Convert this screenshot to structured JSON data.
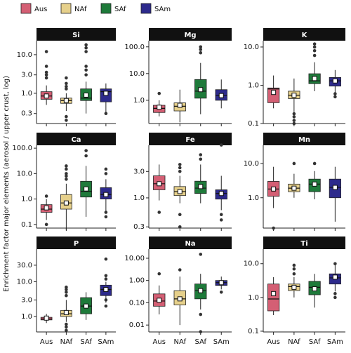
{
  "chart_data": {
    "type": "box",
    "y_label": "Enrichment factor major elements (aerosol / upper crust, log)",
    "log_scale": true,
    "series": [
      {
        "name": "Aus",
        "color": "#d45f74"
      },
      {
        "name": "NAf",
        "color": "#e6d08b"
      },
      {
        "name": "SAf",
        "color": "#1e7a3a"
      },
      {
        "name": "SAm",
        "color": "#2d2a8c"
      }
    ],
    "panels": [
      {
        "title": "Si",
        "ylim": [
          0.165,
          23
        ],
        "yticks": [
          0.3,
          {
            "value": 1,
            "label": "1.0"
          },
          {
            "value": 3,
            "label": "3.0"
          },
          {
            "value": 10,
            "label": "10.0"
          }
        ],
        "boxes": [
          {
            "q1": 0.7,
            "median": 0.85,
            "q3": 1.1,
            "whisker_low": 0.5,
            "whisker_high": 1.6,
            "mean": 0.85,
            "outliers": [
              2.5,
              3,
              3.5,
              5,
              12
            ]
          },
          {
            "q1": 0.55,
            "median": 0.65,
            "q3": 0.75,
            "whisker_low": 0.35,
            "whisker_high": 1.0,
            "mean": 0.65,
            "outliers": [
              0.2,
              0.25,
              1.3,
              1.5,
              1.8,
              2.5
            ]
          },
          {
            "q1": 0.65,
            "median": 0.75,
            "q3": 1.3,
            "whisker_low": 0.3,
            "whisker_high": 2,
            "mean": 0.9,
            "outliers": [
              3,
              4,
              5,
              12,
              15,
              18
            ]
          },
          {
            "q1": 0.6,
            "median": 1.1,
            "q3": 1.3,
            "whisker_low": 0.3,
            "whisker_high": 1.8,
            "mean": 1.0,
            "outliers": [
              0.3
            ]
          }
        ]
      },
      {
        "title": "Mg",
        "ylim": [
          0.135,
          170
        ],
        "yticks": [
          {
            "value": 1,
            "label": "1.0"
          },
          {
            "value": 10,
            "label": "10.0"
          },
          {
            "value": 100,
            "label": "100.0"
          }
        ],
        "boxes": [
          {
            "q1": 0.35,
            "median": 0.5,
            "q3": 0.65,
            "whisker_low": 0.25,
            "whisker_high": 1.0,
            "mean": 0.55,
            "outliers": [
              1.8
            ]
          },
          {
            "q1": 0.4,
            "median": 0.6,
            "q3": 0.8,
            "whisker_low": 0.15,
            "whisker_high": 2.5,
            "mean": 0.65,
            "outliers": []
          },
          {
            "q1": 1.2,
            "median": 2.2,
            "q3": 6,
            "whisker_low": 0.3,
            "whisker_high": 25,
            "mean": 2.5,
            "outliers": [
              60,
              80,
              100
            ]
          },
          {
            "q1": 1.0,
            "median": 1.5,
            "q3": 2.5,
            "whisker_low": 0.5,
            "whisker_high": 6,
            "mean": 1.5,
            "outliers": []
          }
        ]
      },
      {
        "title": "K",
        "ylim": [
          0.1,
          14.6
        ],
        "yticks": [
          0.1,
          {
            "value": 1,
            "label": "1.0"
          },
          {
            "value": 10,
            "label": "10.0"
          }
        ],
        "boxes": [
          {
            "q1": 0.35,
            "median": 0.8,
            "q3": 0.85,
            "whisker_low": 0.25,
            "whisker_high": 1.8,
            "mean": 0.65,
            "outliers": []
          },
          {
            "q1": 0.45,
            "median": 0.55,
            "q3": 0.7,
            "whisker_low": 0.2,
            "whisker_high": 1.5,
            "mean": 0.55,
            "outliers": [
              0.1,
              0.12,
              0.15,
              0.18
            ]
          },
          {
            "q1": 1.1,
            "median": 1.3,
            "q3": 2.0,
            "whisker_low": 0.7,
            "whisker_high": 4,
            "mean": 1.5,
            "outliers": [
              6,
              8,
              10,
              12
            ]
          },
          {
            "q1": 0.95,
            "median": 1.3,
            "q3": 1.6,
            "whisker_low": 0.6,
            "whisker_high": 2.5,
            "mean": 1.3,
            "outliers": [
              0.5,
              0.6
            ]
          }
        ]
      },
      {
        "title": "Ca",
        "ylim": [
          0.072,
          130
        ],
        "yticks": [
          0.1,
          {
            "value": 1,
            "label": "1.0"
          },
          {
            "value": 10,
            "label": "10.0"
          },
          {
            "value": 100,
            "label": "100.0"
          }
        ],
        "boxes": [
          {
            "q1": 0.3,
            "median": 0.4,
            "q3": 0.6,
            "whisker_low": 0.15,
            "whisker_high": 1.0,
            "mean": 0.45,
            "outliers": [
              0.1,
              1.3
            ]
          },
          {
            "q1": 0.4,
            "median": 0.7,
            "q3": 1.5,
            "whisker_low": 0.06,
            "whisker_high": 4,
            "mean": 0.7,
            "outliers": [
              6,
              8,
              10,
              15,
              20
            ]
          },
          {
            "q1": 1.2,
            "median": 2,
            "q3": 5,
            "whisker_low": 0.2,
            "whisker_high": 20,
            "mean": 2.5,
            "outliers": [
              50,
              80
            ]
          },
          {
            "q1": 1.0,
            "median": 1.5,
            "q3": 2.8,
            "whisker_low": 0.3,
            "whisker_high": 6,
            "mean": 1.5,
            "outliers": [
              0.2,
              0.3,
              10,
              15
            ]
          }
        ]
      },
      {
        "title": "Fe",
        "ylim": [
          0.285,
          8.9
        ],
        "yticks": [
          0.3,
          {
            "value": 1,
            "label": "1.0"
          },
          {
            "value": 3,
            "label": "3.0"
          }
        ],
        "boxes": [
          {
            "q1": 1.4,
            "median": 1.8,
            "q3": 2.5,
            "whisker_low": 0.9,
            "whisker_high": 4,
            "mean": 1.8,
            "outliers": [
              0.55
            ]
          },
          {
            "q1": 1.1,
            "median": 1.3,
            "q3": 1.6,
            "whisker_low": 0.8,
            "whisker_high": 2.5,
            "mean": 1.3,
            "outliers": [
              0.3,
              0.5,
              3,
              3.5,
              4
            ]
          },
          {
            "q1": 1.2,
            "median": 1.5,
            "q3": 2.0,
            "whisker_low": 0.8,
            "whisker_high": 4,
            "mean": 1.6,
            "outliers": [
              5,
              6
            ]
          },
          {
            "q1": 0.95,
            "median": 1.2,
            "q3": 1.4,
            "whisker_low": 0.6,
            "whisker_high": 2.5,
            "mean": 1.2,
            "outliers": [
              0.4,
              0.5,
              9
            ]
          }
        ]
      },
      {
        "title": "Mn",
        "ylim": [
          0.13,
          34
        ],
        "yticks": [
          {
            "value": 1,
            "label": "1.0"
          },
          {
            "value": 10,
            "label": "10.0"
          }
        ],
        "boxes": [
          {
            "q1": 1.1,
            "median": 1.8,
            "q3": 3,
            "whisker_low": 0.5,
            "whisker_high": 8,
            "mean": 1.8,
            "outliers": [
              0.13
            ]
          },
          {
            "q1": 1.5,
            "median": 1.9,
            "q3": 2.5,
            "whisker_low": 1.0,
            "whisker_high": 5,
            "mean": 1.9,
            "outliers": [
              10
            ]
          },
          {
            "q1": 1.5,
            "median": 2.5,
            "q3": 3.5,
            "whisker_low": 0.9,
            "whisker_high": 6,
            "mean": 2.5,
            "outliers": [
              10
            ]
          },
          {
            "q1": 1.0,
            "median": 2,
            "q3": 3.5,
            "whisker_low": 0.2,
            "whisker_high": 8,
            "mean": 2.0,
            "outliers": []
          }
        ]
      },
      {
        "title": "P",
        "ylim": [
          0.36,
          87
        ],
        "yticks": [
          {
            "value": 1,
            "label": "1.0"
          },
          {
            "value": 3,
            "label": "3.0"
          },
          {
            "value": 10,
            "label": "10.0"
          },
          {
            "value": 30,
            "label": "30.0"
          }
        ],
        "boxes": [
          {
            "q1": 0.8,
            "median": 0.85,
            "q3": 0.95,
            "whisker_low": 0.65,
            "whisker_high": 1.2,
            "mean": 0.9,
            "outliers": []
          },
          {
            "q1": 1.0,
            "median": 1.2,
            "q3": 1.5,
            "whisker_low": 0.7,
            "whisker_high": 3,
            "mean": 1.3,
            "outliers": [
              0.4,
              0.5,
              0.6,
              4,
              5,
              6,
              7
            ]
          },
          {
            "q1": 1.2,
            "median": 2,
            "q3": 3.5,
            "whisker_low": 0.8,
            "whisker_high": 5,
            "mean": 2,
            "outliers": []
          },
          {
            "q1": 4,
            "median": 6,
            "q3": 8,
            "whisker_low": 2.5,
            "whisker_high": 10,
            "mean": 6,
            "outliers": [
              2,
              3,
              12,
              15,
              45
            ]
          }
        ]
      },
      {
        "title": "Na",
        "ylim": [
          0.0049,
          25.6
        ],
        "yticks": [
          0.01,
          {
            "value": 0.1,
            "label": "0.10"
          },
          {
            "value": 1,
            "label": "1.00"
          },
          {
            "value": 10,
            "label": "10.00"
          }
        ],
        "boxes": [
          {
            "q1": 0.07,
            "median": 0.12,
            "q3": 0.25,
            "whisker_low": 0.03,
            "whisker_high": 0.6,
            "mean": 0.13,
            "outliers": [
              2
            ]
          },
          {
            "q1": 0.08,
            "median": 0.15,
            "q3": 0.35,
            "whisker_low": 0.01,
            "whisker_high": 1.5,
            "mean": 0.15,
            "outliers": [
              3
            ]
          },
          {
            "q1": 0.15,
            "median": 0.35,
            "q3": 0.7,
            "whisker_low": 0.05,
            "whisker_high": 2,
            "mean": 0.35,
            "outliers": [
              0.005,
              0.03,
              15
            ]
          },
          {
            "q1": 0.6,
            "median": 0.8,
            "q3": 1.0,
            "whisker_low": 0.4,
            "whisker_high": 1.5,
            "mean": 0.8,
            "outliers": [
              0.3
            ]
          }
        ]
      },
      {
        "title": "Ti",
        "ylim": [
          0.095,
          27
        ],
        "yticks": [
          0.1,
          {
            "value": 1,
            "label": "1.0"
          },
          {
            "value": 10,
            "label": "10.0"
          }
        ],
        "boxes": [
          {
            "q1": 0.4,
            "median": 0.9,
            "q3": 2.5,
            "whisker_low": 0.3,
            "whisker_high": 4,
            "mean": 1.3,
            "outliers": []
          },
          {
            "q1": 1.6,
            "median": 2.1,
            "q3": 2.5,
            "whisker_low": 1.0,
            "whisker_high": 4,
            "mean": 2.0,
            "outliers": [
              5,
              7,
              9
            ]
          },
          {
            "q1": 1.2,
            "median": 2,
            "q3": 3,
            "whisker_low": 0.5,
            "whisker_high": 5,
            "mean": 1.8,
            "outliers": []
          },
          {
            "q1": 2.5,
            "median": 3.8,
            "q3": 5,
            "whisker_low": 1.5,
            "whisker_high": 9,
            "mean": 4,
            "outliers": [
              1,
              1.3,
              10
            ]
          }
        ]
      }
    ]
  }
}
